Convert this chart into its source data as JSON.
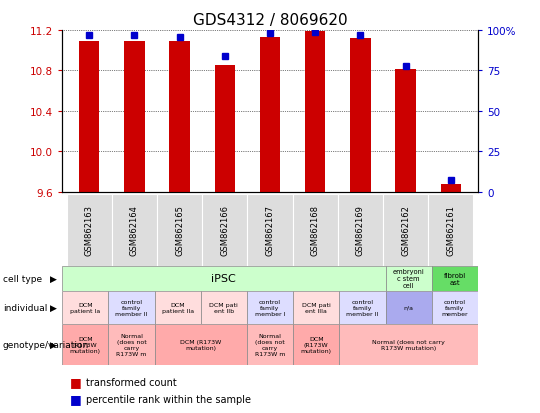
{
  "title": "GDS4312 / 8069620",
  "samples": [
    "GSM862163",
    "GSM862164",
    "GSM862165",
    "GSM862166",
    "GSM862167",
    "GSM862168",
    "GSM862169",
    "GSM862162",
    "GSM862161"
  ],
  "red_values": [
    11.09,
    11.09,
    11.09,
    10.85,
    11.13,
    11.19,
    11.12,
    10.81,
    9.67
  ],
  "blue_values": [
    97,
    97,
    96,
    84,
    98,
    99,
    97,
    78,
    7
  ],
  "ylim_left": [
    9.6,
    11.2
  ],
  "ylim_right": [
    0,
    100
  ],
  "yticks_left": [
    9.6,
    10.0,
    10.4,
    10.8,
    11.2
  ],
  "yticks_right": [
    0,
    25,
    50,
    75,
    100
  ],
  "red_color": "#cc0000",
  "blue_color": "#0000cc",
  "bar_width": 0.45,
  "title_fontsize": 11
}
